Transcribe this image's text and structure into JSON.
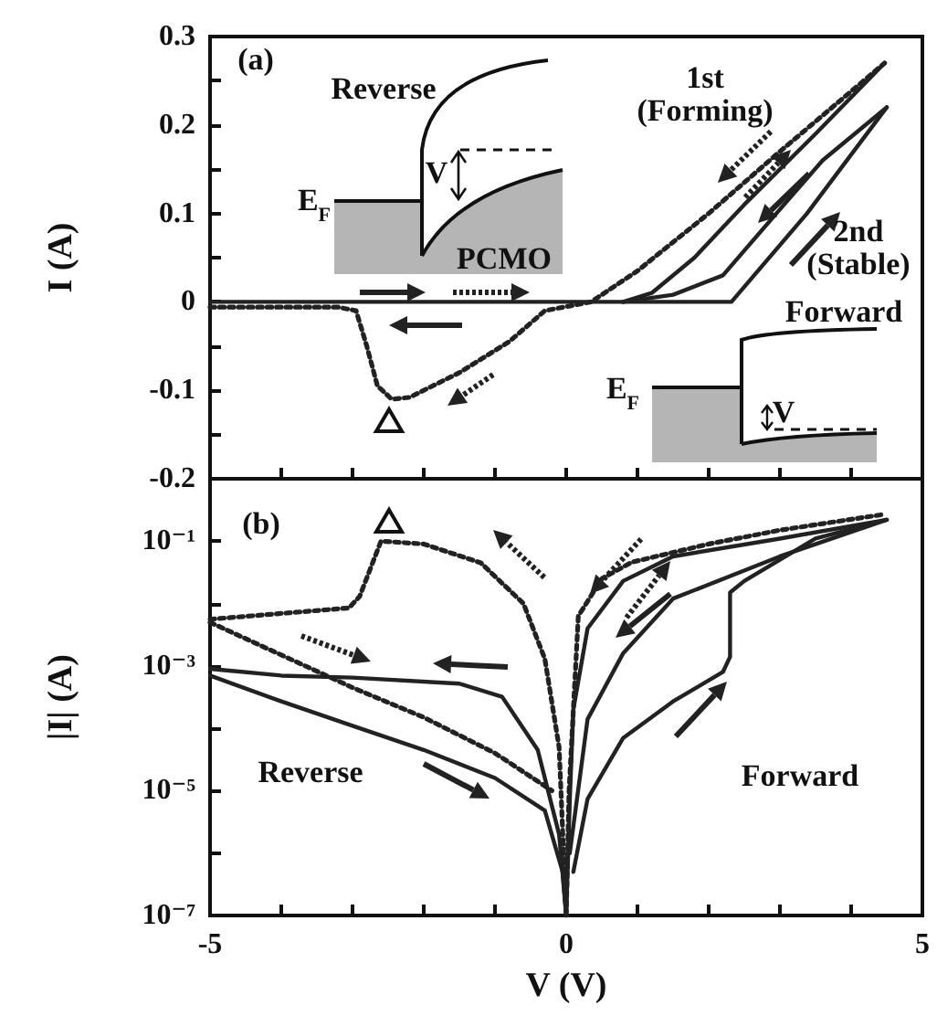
{
  "chart_data": [
    {
      "type": "line",
      "ylabel": "I (A)",
      "xlim": [
        -5,
        5
      ],
      "xticks": [
        -5,
        -4,
        -3,
        -2,
        -1,
        0,
        1,
        2,
        3,
        4,
        5
      ],
      "ylim": [
        -0.2,
        0.3
      ],
      "yticks": [
        -0.2,
        {
          "value": -0.15,
          "label": null
        },
        -0.1,
        {
          "value": -0.05,
          "label": null
        },
        0,
        {
          "value": 0.05,
          "label": null
        },
        0.1,
        {
          "value": 0.15,
          "label": null
        },
        0.2,
        {
          "value": 0.25,
          "label": null
        },
        0.3
      ],
      "tick_labels": "y",
      "grid": false,
      "marker": "none",
      "annotations": [
        "(a)",
        "Reverse",
        "PCMO",
        "E$_{F}$",
        "V",
        "1st\n(Forming)",
        "2nd\n(Stable)",
        "Forward",
        "E$_{F}$",
        "V"
      ],
      "series": [
        {
          "color": "#222222",
          "line_style": "dotted",
          "x": [
            -5,
            -3.2,
            -2.95,
            -2.8,
            -2.65,
            -2.45,
            -2.2,
            -1.5,
            -0.8,
            -0.3,
            0.35,
            1,
            2,
            3,
            4.47
          ],
          "values": [
            -0.006,
            -0.006,
            -0.01,
            -0.05,
            -0.095,
            -0.11,
            -0.108,
            -0.08,
            -0.045,
            -0.01,
            0,
            0.035,
            0.1,
            0.17,
            0.27
          ]
        },
        {
          "color": "#222222",
          "line_style": "solid",
          "x": [
            0.8,
            1.2,
            1.8,
            2.5,
            3.5,
            4.47
          ],
          "values": [
            0,
            0.01,
            0.05,
            0.11,
            0.19,
            0.27
          ]
        },
        {
          "color": "#222222",
          "line_style": "solid",
          "x": [
            0.8,
            1.5,
            2.2,
            2.95,
            3.6,
            4.5
          ],
          "values": [
            0,
            0.008,
            0.03,
            0.1,
            0.16,
            0.22
          ]
        },
        {
          "color": "#222222",
          "line_style": "solid",
          "x": [
            -5,
            2.32,
            3.38,
            4.5
          ],
          "values": [
            0,
            0,
            0.1,
            0.22
          ]
        }
      ]
    },
    {
      "type": "line",
      "xlabel": "V (V)",
      "ylabel": "|I| (A)",
      "log": "y",
      "xlim": [
        -5,
        5
      ],
      "xticks": [
        -5,
        {
          "value": -4,
          "label": null
        },
        {
          "value": -3,
          "label": null
        },
        {
          "value": -2,
          "label": null
        },
        {
          "value": -1,
          "label": null
        },
        0,
        {
          "value": 1,
          "label": null
        },
        {
          "value": 2,
          "label": null
        },
        {
          "value": 3,
          "label": null
        },
        {
          "value": 4,
          "label": null
        },
        5
      ],
      "ylim": [
        1e-07,
        1
      ],
      "yticks": [
        {
          "value": 1e-07,
          "label": "10⁻⁷"
        },
        {
          "value": 1e-06,
          "label": null
        },
        {
          "value": 1e-05,
          "label": "10⁻⁵"
        },
        {
          "value": 0.0001,
          "label": null
        },
        {
          "value": 0.001,
          "label": "10⁻³"
        },
        {
          "value": 0.01,
          "label": null
        },
        {
          "value": 0.1,
          "label": "10⁻¹"
        },
        {
          "value": 1,
          "label": null
        }
      ],
      "grid": false,
      "marker": "none",
      "annotations": [
        "(b)",
        "Reverse",
        "Forward"
      ],
      "series": [
        {
          "color": "#222222",
          "line_style": "dotted",
          "x": [
            -5,
            -3.05,
            -2.9,
            -2.6,
            -2.0,
            -1.2,
            -0.6,
            -0.3,
            -0.1,
            0
          ],
          "values": [
            0.0056,
            0.0085,
            0.013,
            0.1,
            0.09,
            0.045,
            0.01,
            0.0013,
            5e-05,
            1e-07
          ]
        },
        {
          "color": "#222222",
          "line_style": "dotted",
          "x": [
            0,
            0.04,
            0.17,
            0.5,
            0.92,
            2,
            3,
            4.47
          ],
          "values": [
            1e-07,
            1e-05,
            0.0063,
            0.025,
            0.046,
            0.09,
            0.15,
            0.27
          ]
        },
        {
          "color": "#222222",
          "line_style": "dotted",
          "x": [
            -5,
            -4,
            -3,
            -2,
            -1,
            -0.2
          ],
          "values": [
            0.005,
            0.0015,
            0.00045,
            0.00015,
            4e-05,
            1e-05
          ]
        },
        {
          "color": "#222222",
          "line_style": "solid",
          "x": [
            -5,
            -4,
            -3,
            -1.5,
            -0.9,
            -0.4,
            -0.1,
            0
          ],
          "values": [
            0.0009,
            0.0007,
            0.00065,
            0.00052,
            0.00032,
            4.5e-05,
            2e-06,
            1e-07
          ]
        },
        {
          "color": "#222222",
          "line_style": "solid",
          "x": [
            -5,
            -4,
            -3,
            -2,
            -1,
            -0.3,
            -0.05,
            0
          ],
          "values": [
            0.0007,
            0.00027,
            0.00011,
            4.5e-05,
            1.6e-05,
            4.8e-06,
            5e-07,
            1e-07
          ]
        },
        {
          "color": "#222222",
          "line_style": "solid",
          "x": [
            0,
            0.05,
            0.1,
            0.3,
            0.8,
            1.5,
            3,
            4.5
          ],
          "values": [
            1e-07,
            7e-06,
            0.0002,
            0.004,
            0.023,
            0.057,
            0.11,
            0.22
          ]
        },
        {
          "color": "#222222",
          "line_style": "solid",
          "x": [
            0.05,
            0.3,
            0.8,
            1.5,
            3,
            4.5
          ],
          "values": [
            1e-06,
            0.00014,
            0.0016,
            0.012,
            0.057,
            0.22
          ]
        },
        {
          "color": "#222222",
          "line_style": "solid",
          "x": [
            0.1,
            0.3,
            0.8,
            1.5,
            2.2,
            2.3,
            2.3,
            2.5,
            3.5,
            4.5
          ],
          "values": [
            5e-07,
            7.4e-06,
            7e-05,
            0.00027,
            0.0008,
            0.0014,
            0.015,
            0.023,
            0.11,
            0.22
          ]
        }
      ]
    }
  ]
}
